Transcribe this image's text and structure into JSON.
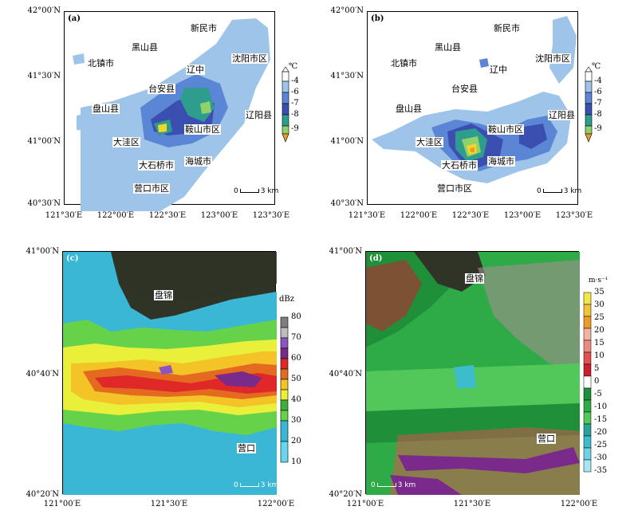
{
  "panels": [
    {
      "label": "(a)",
      "cities": [
        "新民市",
        "黑山县",
        "北镇市",
        "沈阳市区",
        "辽中",
        "台安县",
        "盘山县",
        "辽阳县",
        "鞍山市区",
        "大洼区",
        "海城市",
        "大石桥市",
        "营口市区"
      ],
      "lat_ticks": [
        "42°00′N",
        "41°30′N",
        "41°00′N",
        "40°30′N"
      ],
      "lon_ticks": [
        "121°30′E",
        "122°00′E",
        "122°30′E",
        "123°00′E",
        "123°30′E"
      ],
      "scale": "3 km"
    },
    {
      "label": "(b)",
      "cities": [
        "新民市",
        "黑山县",
        "北镇市",
        "沈阳市区",
        "辽中",
        "台安县",
        "盘山县",
        "辽阳县",
        "鞍山市区",
        "大洼区",
        "海城市",
        "大石桥市",
        "营口市区"
      ],
      "lat_ticks": [
        "42°00′N",
        "41°30′N",
        "41°00′N",
        "40°30′N"
      ],
      "lon_ticks": [
        "121°30′E",
        "122°00′E",
        "122°30′E",
        "123°00′E",
        "123°30′E"
      ],
      "scale": "3 km"
    },
    {
      "label": "(c)",
      "cities": [
        "盘锦",
        "营口"
      ],
      "lat_ticks": [
        "41°00′N",
        "40°40′N",
        "40°20′N"
      ],
      "lon_ticks": [
        "121°00′E",
        "121°30′E",
        "122°00′E"
      ],
      "scale": "3 km"
    },
    {
      "label": "(d)",
      "cities": [
        "盘锦",
        "营口"
      ],
      "lat_ticks": [
        "41°00′N",
        "40°40′N",
        "40°20′N"
      ],
      "lon_ticks": [
        "121°00′E",
        "121°30′E",
        "122°00′E"
      ],
      "scale": "3 km"
    }
  ],
  "colorbars": {
    "temperature": {
      "unit": "℃",
      "ticks": [
        "-4",
        "-6",
        "-7",
        "-8",
        "-9"
      ],
      "colors": [
        "#ffffff",
        "#9ec4ea",
        "#5b86d6",
        "#3b4fb0",
        "#2f9d8e",
        "#8fd16a",
        "#f3d52a",
        "#e89a2a"
      ]
    },
    "reflectivity": {
      "unit": "dBz",
      "ticks": [
        "80",
        "70",
        "60",
        "50",
        "40",
        "30",
        "20",
        "10"
      ],
      "colors": [
        "#7f7f7f",
        "#bdbdbd",
        "#8e55c0",
        "#7a2a8a",
        "#e02828",
        "#e36a1f",
        "#f4c327",
        "#eaf03a",
        "#3fae3a",
        "#66d24a",
        "#3ab7d5",
        "#67d6ee"
      ]
    },
    "velocity": {
      "unit": "m·s⁻¹",
      "ticks": [
        "35",
        "30",
        "25",
        "20",
        "15",
        "10",
        "5",
        "0",
        "-5",
        "-10",
        "-15",
        "-20",
        "-25",
        "-30",
        "-35"
      ],
      "colors": [
        "#f4e64a",
        "#f2c23a",
        "#f09a2a",
        "#f2b4a2",
        "#ef8a80",
        "#e25050",
        "#c91f2f",
        "#ffffff",
        "#1f8f3a",
        "#2eab47",
        "#52c75a",
        "#27a39a",
        "#3dbccc",
        "#71d2e5",
        "#a9e4f2"
      ]
    }
  }
}
